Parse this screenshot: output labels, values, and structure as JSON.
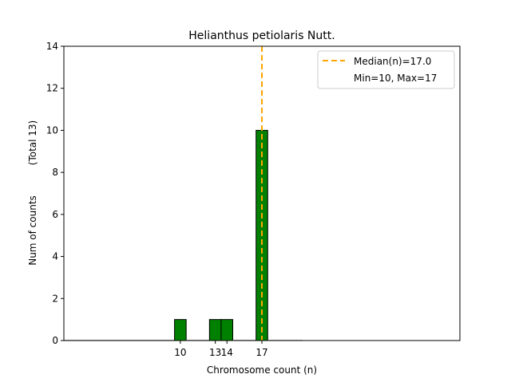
{
  "chart_data": {
    "type": "bar",
    "title": "Helianthus petiolaris Nutt.",
    "xlabel": "Chromosome count (n)",
    "ylabel": "Num of counts",
    "ylabel_extra": "(Total 13)",
    "xlim": [
      0,
      34
    ],
    "ylim": [
      0,
      14
    ],
    "yticks": [
      0,
      2,
      4,
      6,
      8,
      10,
      12,
      14
    ],
    "xticks": [
      10,
      13,
      14,
      17
    ],
    "x": [
      0,
      1,
      2,
      3,
      4,
      5,
      6,
      7,
      8,
      9,
      10,
      11,
      12,
      13,
      14,
      15,
      16,
      17,
      18,
      19,
      20
    ],
    "values": [
      0,
      0,
      0,
      0,
      0,
      0,
      0,
      0,
      0,
      0,
      1,
      0,
      0,
      1,
      1,
      0,
      0,
      10,
      0,
      0,
      0
    ],
    "bar_color": "#008000",
    "median": 17.0,
    "median_color": "#FFA500",
    "legend": {
      "placement": "top-right",
      "entries": [
        "Median(n)=17.0",
        "Min=10, Max=17"
      ]
    },
    "grid": false
  }
}
